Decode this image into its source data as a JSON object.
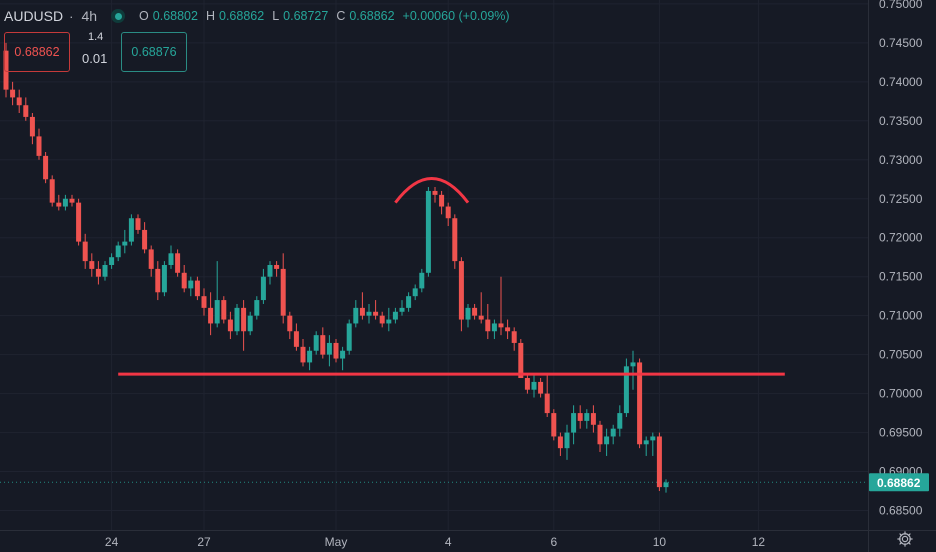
{
  "header": {
    "symbol": "AUDUSD",
    "timeframe": "4h",
    "ohlc": [
      {
        "key": "O",
        "value": "0.68802"
      },
      {
        "key": "H",
        "value": "0.68862"
      },
      {
        "key": "L",
        "value": "0.68727"
      },
      {
        "key": "C",
        "value": "0.68862"
      }
    ],
    "change": "+0.00060 (+0.09%)"
  },
  "trade_panel": {
    "bid": "0.68862",
    "lot": "1.4",
    "spread": "0.01",
    "ask": "0.68876"
  },
  "colors": {
    "background": "#161a25",
    "up": "#26a69a",
    "down": "#ef5350",
    "drawing": "#f23645",
    "axis_text": "#b2b5be"
  },
  "icons": [
    "live-status-icon",
    "settings-gear-icon"
  ],
  "chart_data": {
    "type": "candlestick",
    "price_axis_side": "right",
    "ylim": [
      0.6825,
      0.7505
    ],
    "y_ticks": [
      "0.75000",
      "0.74500",
      "0.74000",
      "0.73500",
      "0.73000",
      "0.72500",
      "0.72000",
      "0.71500",
      "0.71000",
      "0.70500",
      "0.70000",
      "0.69500",
      "0.69000",
      "0.68500"
    ],
    "x_ticks": [
      {
        "label": "24",
        "bar": 16
      },
      {
        "label": "27",
        "bar": 30
      },
      {
        "label": "May",
        "bar": 50
      },
      {
        "label": "4",
        "bar": 67
      },
      {
        "label": "6",
        "bar": 83
      },
      {
        "label": "10",
        "bar": 99
      },
      {
        "label": "12",
        "bar": 114
      }
    ],
    "last_price": "0.68862",
    "candles": [
      [
        0.744,
        0.745,
        0.738,
        0.739
      ],
      [
        0.739,
        0.74,
        0.737,
        0.738
      ],
      [
        0.738,
        0.739,
        0.736,
        0.737
      ],
      [
        0.737,
        0.738,
        0.735,
        0.7355
      ],
      [
        0.7355,
        0.736,
        0.732,
        0.733
      ],
      [
        0.733,
        0.734,
        0.73,
        0.7305
      ],
      [
        0.7305,
        0.731,
        0.727,
        0.7275
      ],
      [
        0.7275,
        0.728,
        0.724,
        0.7245
      ],
      [
        0.7245,
        0.7255,
        0.7235,
        0.724
      ],
      [
        0.724,
        0.7255,
        0.7235,
        0.725
      ],
      [
        0.725,
        0.7255,
        0.724,
        0.7245
      ],
      [
        0.7245,
        0.725,
        0.719,
        0.7195
      ],
      [
        0.7195,
        0.7205,
        0.716,
        0.717
      ],
      [
        0.717,
        0.718,
        0.715,
        0.716
      ],
      [
        0.716,
        0.717,
        0.714,
        0.715
      ],
      [
        0.715,
        0.717,
        0.7145,
        0.7165
      ],
      [
        0.7165,
        0.718,
        0.716,
        0.7175
      ],
      [
        0.7175,
        0.7195,
        0.717,
        0.719
      ],
      [
        0.719,
        0.721,
        0.718,
        0.7195
      ],
      [
        0.7195,
        0.723,
        0.719,
        0.7225
      ],
      [
        0.7225,
        0.723,
        0.7205,
        0.721
      ],
      [
        0.721,
        0.722,
        0.718,
        0.7185
      ],
      [
        0.7185,
        0.719,
        0.715,
        0.716
      ],
      [
        0.716,
        0.717,
        0.712,
        0.713
      ],
      [
        0.713,
        0.717,
        0.7125,
        0.7165
      ],
      [
        0.7165,
        0.719,
        0.716,
        0.718
      ],
      [
        0.718,
        0.7185,
        0.715,
        0.7155
      ],
      [
        0.7155,
        0.7165,
        0.713,
        0.7135
      ],
      [
        0.7135,
        0.715,
        0.7125,
        0.7145
      ],
      [
        0.7145,
        0.715,
        0.712,
        0.7125
      ],
      [
        0.7125,
        0.7135,
        0.71,
        0.711
      ],
      [
        0.711,
        0.713,
        0.7075,
        0.709
      ],
      [
        0.709,
        0.717,
        0.7085,
        0.712
      ],
      [
        0.712,
        0.7125,
        0.709,
        0.7095
      ],
      [
        0.7095,
        0.7105,
        0.707,
        0.708
      ],
      [
        0.708,
        0.7115,
        0.7075,
        0.711
      ],
      [
        0.711,
        0.712,
        0.7055,
        0.708
      ],
      [
        0.708,
        0.7105,
        0.7075,
        0.71
      ],
      [
        0.71,
        0.7125,
        0.7095,
        0.712
      ],
      [
        0.712,
        0.716,
        0.7115,
        0.715
      ],
      [
        0.715,
        0.717,
        0.714,
        0.7165
      ],
      [
        0.7165,
        0.717,
        0.715,
        0.716
      ],
      [
        0.716,
        0.718,
        0.709,
        0.71
      ],
      [
        0.71,
        0.7105,
        0.707,
        0.708
      ],
      [
        0.708,
        0.709,
        0.7055,
        0.706
      ],
      [
        0.706,
        0.707,
        0.7035,
        0.704
      ],
      [
        0.704,
        0.706,
        0.703,
        0.7055
      ],
      [
        0.7055,
        0.708,
        0.705,
        0.7075
      ],
      [
        0.7075,
        0.7085,
        0.7045,
        0.705
      ],
      [
        0.705,
        0.7075,
        0.7035,
        0.7065
      ],
      [
        0.7065,
        0.707,
        0.704,
        0.7045
      ],
      [
        0.7045,
        0.706,
        0.703,
        0.7055
      ],
      [
        0.7055,
        0.7095,
        0.705,
        0.709
      ],
      [
        0.709,
        0.712,
        0.7085,
        0.711
      ],
      [
        0.711,
        0.713,
        0.7095,
        0.71
      ],
      [
        0.71,
        0.7115,
        0.709,
        0.7105
      ],
      [
        0.7105,
        0.712,
        0.7095,
        0.71
      ],
      [
        0.71,
        0.7105,
        0.7085,
        0.709
      ],
      [
        0.709,
        0.711,
        0.708,
        0.7095
      ],
      [
        0.7095,
        0.711,
        0.709,
        0.7105
      ],
      [
        0.7105,
        0.712,
        0.71,
        0.711
      ],
      [
        0.711,
        0.713,
        0.7105,
        0.7125
      ],
      [
        0.7125,
        0.714,
        0.712,
        0.7135
      ],
      [
        0.7135,
        0.716,
        0.713,
        0.7155
      ],
      [
        0.7155,
        0.7265,
        0.715,
        0.726
      ],
      [
        0.726,
        0.7265,
        0.7245,
        0.7255
      ],
      [
        0.7255,
        0.726,
        0.723,
        0.724
      ],
      [
        0.724,
        0.7245,
        0.7215,
        0.7225
      ],
      [
        0.7225,
        0.723,
        0.716,
        0.717
      ],
      [
        0.717,
        0.7175,
        0.708,
        0.7095
      ],
      [
        0.7095,
        0.7115,
        0.7085,
        0.711
      ],
      [
        0.711,
        0.7115,
        0.7095,
        0.71
      ],
      [
        0.71,
        0.713,
        0.709,
        0.7095
      ],
      [
        0.7095,
        0.7115,
        0.707,
        0.708
      ],
      [
        0.708,
        0.7095,
        0.707,
        0.709
      ],
      [
        0.709,
        0.715,
        0.7075,
        0.7085
      ],
      [
        0.7085,
        0.7095,
        0.707,
        0.708
      ],
      [
        0.708,
        0.7085,
        0.7055,
        0.7065
      ],
      [
        0.7065,
        0.707,
        0.702,
        0.702
      ],
      [
        0.702,
        0.7025,
        0.7,
        0.7005
      ],
      [
        0.7005,
        0.7025,
        0.6995,
        0.7015
      ],
      [
        0.7015,
        0.702,
        0.6995,
        0.7
      ],
      [
        0.7,
        0.7025,
        0.697,
        0.6975
      ],
      [
        0.6975,
        0.698,
        0.694,
        0.6945
      ],
      [
        0.6945,
        0.695,
        0.692,
        0.693
      ],
      [
        0.693,
        0.696,
        0.6915,
        0.695
      ],
      [
        0.695,
        0.6985,
        0.6935,
        0.6975
      ],
      [
        0.6975,
        0.6985,
        0.6955,
        0.6965
      ],
      [
        0.6965,
        0.698,
        0.6955,
        0.6975
      ],
      [
        0.6975,
        0.6985,
        0.695,
        0.696
      ],
      [
        0.696,
        0.6965,
        0.6925,
        0.6935
      ],
      [
        0.6935,
        0.6955,
        0.692,
        0.6945
      ],
      [
        0.6945,
        0.696,
        0.6935,
        0.6955
      ],
      [
        0.6955,
        0.6985,
        0.6945,
        0.6975
      ],
      [
        0.6975,
        0.7045,
        0.697,
        0.7035
      ],
      [
        0.7035,
        0.7055,
        0.7005,
        0.704
      ],
      [
        0.704,
        0.7045,
        0.693,
        0.6935
      ],
      [
        0.6935,
        0.6945,
        0.692,
        0.694
      ],
      [
        0.694,
        0.695,
        0.692,
        0.6945
      ],
      [
        0.6945,
        0.695,
        0.6875,
        0.688
      ],
      [
        0.688,
        0.689,
        0.6873,
        0.6886
      ]
    ],
    "annotations": [
      {
        "type": "horizontal_segment",
        "price": 0.7025,
        "from_bar": 17,
        "to_bar": 118,
        "label": ""
      },
      {
        "type": "arc",
        "from_bar": 59,
        "to_bar": 70,
        "apex_price": 0.7276,
        "end_price": 0.7245,
        "label": ""
      }
    ]
  }
}
